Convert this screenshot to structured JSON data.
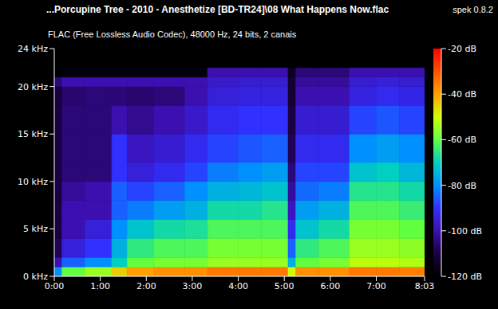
{
  "chart_data": {
    "type": "heatmap",
    "title": "...Porcupine Tree - 2010 - Anesthetize [BD-TR24]\\08 What Happens Now.flac",
    "annotation": "spek 0.8.2",
    "subtitle": "FLAC (Free Lossless Audio Codec), 48000 Hz, 24 bits, 2 canais",
    "xlim": [
      0,
      483
    ],
    "xticks": [
      {
        "value": 0,
        "label": "0:00"
      },
      {
        "value": 60,
        "label": "1:00"
      },
      {
        "value": 120,
        "label": "2:00"
      },
      {
        "value": 180,
        "label": "3:00"
      },
      {
        "value": 240,
        "label": "4:00"
      },
      {
        "value": 300,
        "label": "5:00"
      },
      {
        "value": 360,
        "label": "6:00"
      },
      {
        "value": 420,
        "label": "7:00"
      },
      {
        "value": 483,
        "label": "8:03"
      }
    ],
    "ylim": [
      0,
      24
    ],
    "yticks": [
      {
        "value": 0,
        "label": "0 kHz"
      },
      {
        "value": 5,
        "label": "5 kHz"
      },
      {
        "value": 10,
        "label": "10 kHz"
      },
      {
        "value": 15,
        "label": "15 kHz"
      },
      {
        "value": 20,
        "label": "20 kHz"
      },
      {
        "value": 24,
        "label": "24 kHz"
      }
    ],
    "x_edges": [
      0,
      10,
      40,
      75,
      95,
      130,
      170,
      200,
      240,
      270,
      305,
      315,
      345,
      385,
      420,
      450,
      483
    ],
    "y_edges": [
      0,
      1,
      2,
      4,
      6,
      8,
      10,
      12,
      15,
      18,
      20,
      21,
      22,
      24
    ],
    "cells": [
      [
        -80,
        -60,
        -55,
        -45,
        -40,
        -38,
        -38,
        -35,
        -35,
        -35,
        -50,
        -38,
        -38,
        -35,
        -35,
        -36
      ],
      [
        -100,
        -85,
        -80,
        -70,
        -60,
        -58,
        -58,
        -55,
        -55,
        -55,
        -75,
        -60,
        -58,
        -52,
        -52,
        -53
      ],
      [
        -108,
        -95,
        -90,
        -75,
        -65,
        -62,
        -62,
        -58,
        -58,
        -58,
        -85,
        -65,
        -62,
        -55,
        -55,
        -56
      ],
      [
        -110,
        -100,
        -95,
        -80,
        -72,
        -68,
        -67,
        -62,
        -62,
        -62,
        -92,
        -72,
        -68,
        -58,
        -58,
        -60
      ],
      [
        -110,
        -100,
        -100,
        -85,
        -82,
        -78,
        -75,
        -68,
        -68,
        -66,
        -98,
        -78,
        -75,
        -62,
        -62,
        -64
      ],
      [
        -110,
        -102,
        -100,
        -85,
        -88,
        -85,
        -80,
        -75,
        -74,
        -72,
        -102,
        -84,
        -82,
        -66,
        -66,
        -68
      ],
      [
        -110,
        -105,
        -105,
        -90,
        -95,
        -92,
        -88,
        -82,
        -80,
        -78,
        -105,
        -88,
        -88,
        -72,
        -70,
        -74
      ],
      [
        -110,
        -105,
        -105,
        -90,
        -98,
        -96,
        -92,
        -88,
        -86,
        -85,
        -108,
        -92,
        -92,
        -80,
        -78,
        -80
      ],
      [
        -110,
        -105,
        -105,
        -100,
        -103,
        -100,
        -97,
        -92,
        -90,
        -90,
        -110,
        -96,
        -96,
        -88,
        -86,
        -88
      ],
      [
        -110,
        -106,
        -105,
        -105,
        -106,
        -105,
        -100,
        -95,
        -94,
        -94,
        -112,
        -100,
        -100,
        -94,
        -92,
        -93
      ],
      [
        -105,
        -100,
        -100,
        -100,
        -100,
        -100,
        -100,
        -97,
        -96,
        -96,
        -112,
        -102,
        -102,
        -96,
        -95,
        -96
      ],
      [
        -120,
        -118,
        -118,
        -118,
        -118,
        -118,
        -118,
        -100,
        -100,
        -100,
        -115,
        -105,
        -105,
        -100,
        -100,
        -100
      ],
      [
        -120,
        -120,
        -120,
        -120,
        -120,
        -120,
        -120,
        -120,
        -120,
        -120,
        -120,
        -120,
        -120,
        -120,
        -120,
        -120
      ]
    ],
    "color_range": [
      -120,
      -20
    ],
    "color_ticks": [
      {
        "value": -20,
        "label": "-20 dB"
      },
      {
        "value": -40,
        "label": "-40 dB"
      },
      {
        "value": -60,
        "label": "-60 dB"
      },
      {
        "value": -80,
        "label": "-80 dB"
      },
      {
        "value": -100,
        "label": "-100 dB"
      },
      {
        "value": -120,
        "label": "-120 dB"
      }
    ]
  }
}
